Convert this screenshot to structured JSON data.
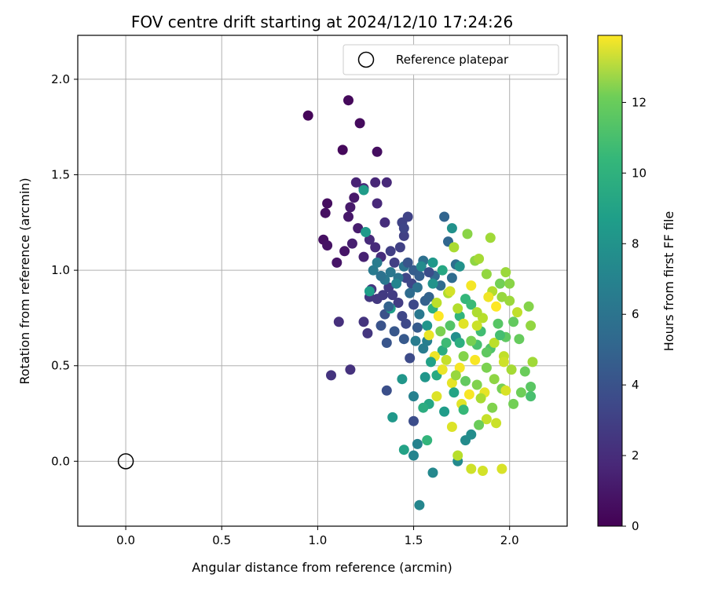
{
  "chart_data": {
    "type": "scatter",
    "title": "FOV centre drift starting at 2024/12/10 17:24:26",
    "xlabel": "Angular distance from reference (arcmin)",
    "ylabel": "Rotation from reference (arcmin)",
    "xlim": [
      -0.25,
      2.3
    ],
    "ylim": [
      -0.34,
      2.23
    ],
    "xticks": [
      "0.0",
      "0.5",
      "1.0",
      "1.5",
      "2.0"
    ],
    "yticks": [
      "0.0",
      "0.5",
      "1.0",
      "1.5",
      "2.0"
    ],
    "grid": true,
    "legend": {
      "placement": "top-right",
      "entries": [
        "Reference platepar"
      ]
    },
    "colorbar": {
      "label": "Hours from first FF file",
      "range": [
        0,
        13.9
      ],
      "ticks": [
        "0",
        "2",
        "4",
        "6",
        "8",
        "10",
        "12"
      ],
      "colormap": "viridis"
    },
    "reference_point": {
      "label": "Reference platepar",
      "x": 0.0,
      "y": 0.0
    },
    "points": [
      {
        "x": 0.95,
        "y": 1.81,
        "h": 0.2
      },
      {
        "x": 1.16,
        "y": 1.89,
        "h": 0.3
      },
      {
        "x": 1.22,
        "y": 1.77,
        "h": 0.4
      },
      {
        "x": 1.13,
        "y": 1.63,
        "h": 0.3
      },
      {
        "x": 1.31,
        "y": 1.62,
        "h": 0.5
      },
      {
        "x": 1.05,
        "y": 1.35,
        "h": 0.5
      },
      {
        "x": 1.04,
        "y": 1.3,
        "h": 0.6
      },
      {
        "x": 1.03,
        "y": 1.16,
        "h": 0.6
      },
      {
        "x": 1.05,
        "y": 1.13,
        "h": 0.7
      },
      {
        "x": 1.1,
        "y": 1.04,
        "h": 0.8
      },
      {
        "x": 1.14,
        "y": 1.1,
        "h": 0.8
      },
      {
        "x": 1.16,
        "y": 1.28,
        "h": 0.9
      },
      {
        "x": 1.17,
        "y": 1.33,
        "h": 1.0
      },
      {
        "x": 1.19,
        "y": 1.38,
        "h": 1.0
      },
      {
        "x": 1.21,
        "y": 1.22,
        "h": 1.1
      },
      {
        "x": 1.18,
        "y": 1.14,
        "h": 1.2
      },
      {
        "x": 1.24,
        "y": 1.07,
        "h": 1.3
      },
      {
        "x": 1.2,
        "y": 1.46,
        "h": 1.4
      },
      {
        "x": 1.24,
        "y": 1.43,
        "h": 1.5
      },
      {
        "x": 1.3,
        "y": 1.46,
        "h": 1.5
      },
      {
        "x": 1.36,
        "y": 1.46,
        "h": 1.6
      },
      {
        "x": 1.31,
        "y": 1.35,
        "h": 1.6
      },
      {
        "x": 1.27,
        "y": 1.16,
        "h": 1.7
      },
      {
        "x": 1.3,
        "y": 1.12,
        "h": 1.7
      },
      {
        "x": 1.35,
        "y": 1.25,
        "h": 1.8
      },
      {
        "x": 1.33,
        "y": 1.07,
        "h": 1.8
      },
      {
        "x": 1.11,
        "y": 0.73,
        "h": 1.9
      },
      {
        "x": 1.17,
        "y": 0.48,
        "h": 2.0
      },
      {
        "x": 1.07,
        "y": 0.45,
        "h": 2.1
      },
      {
        "x": 1.24,
        "y": 0.73,
        "h": 2.1
      },
      {
        "x": 1.26,
        "y": 0.67,
        "h": 2.2
      },
      {
        "x": 1.28,
        "y": 0.9,
        "h": 2.2
      },
      {
        "x": 1.27,
        "y": 0.86,
        "h": 2.3
      },
      {
        "x": 1.31,
        "y": 0.85,
        "h": 2.3
      },
      {
        "x": 1.34,
        "y": 0.87,
        "h": 2.4
      },
      {
        "x": 1.37,
        "y": 0.91,
        "h": 2.4
      },
      {
        "x": 1.39,
        "y": 0.87,
        "h": 2.5
      },
      {
        "x": 1.42,
        "y": 0.83,
        "h": 2.5
      },
      {
        "x": 1.38,
        "y": 1.1,
        "h": 2.6
      },
      {
        "x": 1.4,
        "y": 1.04,
        "h": 2.6
      },
      {
        "x": 1.43,
        "y": 1.12,
        "h": 2.7
      },
      {
        "x": 1.45,
        "y": 1.18,
        "h": 2.7
      },
      {
        "x": 1.44,
        "y": 1.25,
        "h": 2.8
      },
      {
        "x": 1.47,
        "y": 1.28,
        "h": 2.8
      },
      {
        "x": 1.45,
        "y": 1.22,
        "h": 2.9
      },
      {
        "x": 1.46,
        "y": 0.96,
        "h": 2.9
      },
      {
        "x": 1.49,
        "y": 0.93,
        "h": 3.0
      },
      {
        "x": 1.44,
        "y": 0.76,
        "h": 3.0
      },
      {
        "x": 1.46,
        "y": 0.72,
        "h": 3.1
      },
      {
        "x": 1.5,
        "y": 0.82,
        "h": 3.1
      },
      {
        "x": 1.48,
        "y": 0.54,
        "h": 3.2
      },
      {
        "x": 1.5,
        "y": 0.21,
        "h": 3.3
      },
      {
        "x": 1.36,
        "y": 0.37,
        "h": 3.4
      },
      {
        "x": 1.35,
        "y": 0.77,
        "h": 3.5
      },
      {
        "x": 1.33,
        "y": 0.71,
        "h": 3.6
      },
      {
        "x": 1.36,
        "y": 0.62,
        "h": 3.7
      },
      {
        "x": 1.4,
        "y": 0.68,
        "h": 3.8
      },
      {
        "x": 1.45,
        "y": 0.64,
        "h": 3.9
      },
      {
        "x": 1.52,
        "y": 0.7,
        "h": 4.0
      },
      {
        "x": 1.5,
        "y": 1.0,
        "h": 4.1
      },
      {
        "x": 1.53,
        "y": 0.97,
        "h": 4.2
      },
      {
        "x": 1.56,
        "y": 0.84,
        "h": 4.3
      },
      {
        "x": 1.58,
        "y": 0.86,
        "h": 4.4
      },
      {
        "x": 1.66,
        "y": 1.28,
        "h": 4.5
      },
      {
        "x": 1.68,
        "y": 1.15,
        "h": 4.6
      },
      {
        "x": 1.61,
        "y": 0.97,
        "h": 4.7
      },
      {
        "x": 1.64,
        "y": 0.92,
        "h": 4.8
      },
      {
        "x": 1.7,
        "y": 0.96,
        "h": 4.9
      },
      {
        "x": 1.72,
        "y": 1.03,
        "h": 5.0
      },
      {
        "x": 1.55,
        "y": 1.05,
        "h": 5.1
      },
      {
        "x": 1.52,
        "y": 0.91,
        "h": 5.2
      },
      {
        "x": 1.45,
        "y": 1.02,
        "h": 5.3
      },
      {
        "x": 1.42,
        "y": 0.96,
        "h": 5.4
      },
      {
        "x": 1.38,
        "y": 0.99,
        "h": 5.5
      },
      {
        "x": 1.35,
        "y": 0.95,
        "h": 5.6
      },
      {
        "x": 1.29,
        "y": 1.0,
        "h": 5.7
      },
      {
        "x": 1.31,
        "y": 1.04,
        "h": 5.8
      },
      {
        "x": 1.55,
        "y": 0.59,
        "h": 5.9
      },
      {
        "x": 1.57,
        "y": 0.63,
        "h": 6.0
      },
      {
        "x": 1.5,
        "y": 0.34,
        "h": 6.1
      },
      {
        "x": 1.52,
        "y": 0.09,
        "h": 6.2
      },
      {
        "x": 1.5,
        "y": 0.03,
        "h": 6.3
      },
      {
        "x": 1.53,
        "y": -0.23,
        "h": 6.4
      },
      {
        "x": 1.6,
        "y": -0.06,
        "h": 6.5
      },
      {
        "x": 1.73,
        "y": 0.0,
        "h": 6.6
      },
      {
        "x": 1.77,
        "y": 0.11,
        "h": 6.7
      },
      {
        "x": 1.8,
        "y": 0.14,
        "h": 6.8
      },
      {
        "x": 1.72,
        "y": 0.65,
        "h": 6.9
      },
      {
        "x": 1.7,
        "y": 1.22,
        "h": 7.0
      },
      {
        "x": 1.6,
        "y": 0.93,
        "h": 7.1
      },
      {
        "x": 1.57,
        "y": 0.71,
        "h": 7.2
      },
      {
        "x": 1.44,
        "y": 0.43,
        "h": 7.3
      },
      {
        "x": 1.39,
        "y": 0.23,
        "h": 7.4
      },
      {
        "x": 1.25,
        "y": 1.2,
        "h": 7.5
      },
      {
        "x": 1.24,
        "y": 1.42,
        "h": 7.6
      },
      {
        "x": 1.27,
        "y": 0.89,
        "h": 7.7
      },
      {
        "x": 1.38,
        "y": 0.8,
        "h": 7.8
      },
      {
        "x": 1.45,
        "y": 0.06,
        "h": 8.0
      },
      {
        "x": 1.58,
        "y": 0.3,
        "h": 8.2
      },
      {
        "x": 1.62,
        "y": 0.45,
        "h": 8.4
      },
      {
        "x": 1.65,
        "y": 0.58,
        "h": 8.6
      },
      {
        "x": 1.6,
        "y": 0.8,
        "h": 8.8
      },
      {
        "x": 1.74,
        "y": 0.76,
        "h": 9.0
      },
      {
        "x": 1.77,
        "y": 0.85,
        "h": 9.2
      },
      {
        "x": 1.8,
        "y": 0.82,
        "h": 9.4
      },
      {
        "x": 1.85,
        "y": 0.68,
        "h": 9.6
      },
      {
        "x": 1.83,
        "y": 0.61,
        "h": 9.8
      },
      {
        "x": 1.9,
        "y": 0.59,
        "h": 10.0
      },
      {
        "x": 1.94,
        "y": 0.72,
        "h": 10.2
      },
      {
        "x": 1.98,
        "y": 0.65,
        "h": 10.4
      },
      {
        "x": 2.02,
        "y": 0.73,
        "h": 10.5
      },
      {
        "x": 2.05,
        "y": 0.64,
        "h": 10.6
      },
      {
        "x": 2.08,
        "y": 0.47,
        "h": 10.7
      },
      {
        "x": 2.06,
        "y": 0.36,
        "h": 10.8
      },
      {
        "x": 2.02,
        "y": 0.3,
        "h": 10.9
      },
      {
        "x": 1.96,
        "y": 0.38,
        "h": 11.0
      },
      {
        "x": 1.88,
        "y": 0.49,
        "h": 11.1
      },
      {
        "x": 1.83,
        "y": 0.4,
        "h": 11.2
      },
      {
        "x": 1.76,
        "y": 0.55,
        "h": 11.3
      },
      {
        "x": 1.78,
        "y": 1.19,
        "h": 11.4
      },
      {
        "x": 1.82,
        "y": 1.05,
        "h": 11.5
      },
      {
        "x": 1.88,
        "y": 0.98,
        "h": 11.6
      },
      {
        "x": 1.96,
        "y": 0.86,
        "h": 11.7
      },
      {
        "x": 2.0,
        "y": 0.84,
        "h": 11.8
      },
      {
        "x": 1.9,
        "y": 1.17,
        "h": 11.9
      },
      {
        "x": 1.84,
        "y": 1.06,
        "h": 12.0
      },
      {
        "x": 1.71,
        "y": 1.12,
        "h": 12.1
      },
      {
        "x": 1.68,
        "y": 0.88,
        "h": 12.2
      },
      {
        "x": 1.73,
        "y": 0.8,
        "h": 12.3
      },
      {
        "x": 1.86,
        "y": 0.75,
        "h": 12.4
      },
      {
        "x": 1.92,
        "y": 0.62,
        "h": 12.5
      },
      {
        "x": 1.97,
        "y": 0.55,
        "h": 12.6
      },
      {
        "x": 1.88,
        "y": 0.22,
        "h": 12.7
      },
      {
        "x": 1.93,
        "y": 0.2,
        "h": 12.8
      },
      {
        "x": 1.8,
        "y": -0.04,
        "h": 12.9
      },
      {
        "x": 1.86,
        "y": -0.05,
        "h": 13.0
      },
      {
        "x": 1.96,
        "y": -0.04,
        "h": 13.1
      },
      {
        "x": 1.7,
        "y": 0.18,
        "h": 13.2
      },
      {
        "x": 1.75,
        "y": 0.3,
        "h": 13.3
      },
      {
        "x": 1.7,
        "y": 0.41,
        "h": 13.4
      },
      {
        "x": 1.65,
        "y": 0.48,
        "h": 13.5
      },
      {
        "x": 1.61,
        "y": 0.55,
        "h": 13.6
      },
      {
        "x": 1.74,
        "y": 0.49,
        "h": 13.7
      },
      {
        "x": 1.82,
        "y": 0.53,
        "h": 13.8
      },
      {
        "x": 1.93,
        "y": 0.81,
        "h": 13.9
      },
      {
        "x": 1.63,
        "y": 0.76,
        "h": 13.9
      },
      {
        "x": 1.58,
        "y": 0.66,
        "h": 13.5
      },
      {
        "x": 1.8,
        "y": 0.92,
        "h": 13.7
      },
      {
        "x": 1.62,
        "y": 0.34,
        "h": 13.2
      },
      {
        "x": 1.87,
        "y": 0.36,
        "h": 13.4
      },
      {
        "x": 2.04,
        "y": 0.78,
        "h": 12.6
      },
      {
        "x": 2.1,
        "y": 0.81,
        "h": 11.3
      },
      {
        "x": 2.11,
        "y": 0.71,
        "h": 11.6
      },
      {
        "x": 2.12,
        "y": 0.52,
        "h": 11.9
      },
      {
        "x": 2.11,
        "y": 0.39,
        "h": 10.3
      },
      {
        "x": 2.11,
        "y": 0.34,
        "h": 9.8
      },
      {
        "x": 1.98,
        "y": 0.99,
        "h": 11.8
      },
      {
        "x": 1.95,
        "y": 0.93,
        "h": 10.9
      },
      {
        "x": 2.0,
        "y": 0.93,
        "h": 11.4
      },
      {
        "x": 1.91,
        "y": 0.89,
        "h": 12.3
      },
      {
        "x": 1.97,
        "y": 0.52,
        "h": 12.9
      },
      {
        "x": 1.83,
        "y": 0.71,
        "h": 12.8
      },
      {
        "x": 1.8,
        "y": 0.63,
        "h": 11.0
      },
      {
        "x": 1.77,
        "y": 0.42,
        "h": 10.5
      },
      {
        "x": 1.85,
        "y": 0.33,
        "h": 12.1
      },
      {
        "x": 1.92,
        "y": 0.43,
        "h": 11.5
      },
      {
        "x": 1.67,
        "y": 0.62,
        "h": 9.5
      },
      {
        "x": 1.69,
        "y": 0.71,
        "h": 10.1
      },
      {
        "x": 1.74,
        "y": 0.62,
        "h": 8.7
      },
      {
        "x": 1.59,
        "y": 0.52,
        "h": 7.9
      },
      {
        "x": 1.56,
        "y": 0.44,
        "h": 7.3
      },
      {
        "x": 1.55,
        "y": 0.28,
        "h": 8.6
      },
      {
        "x": 1.57,
        "y": 0.11,
        "h": 9.1
      },
      {
        "x": 1.66,
        "y": 0.26,
        "h": 7.6
      },
      {
        "x": 1.71,
        "y": 0.36,
        "h": 8.1
      },
      {
        "x": 1.76,
        "y": 0.27,
        "h": 9.3
      },
      {
        "x": 1.84,
        "y": 0.19,
        "h": 10.7
      },
      {
        "x": 1.91,
        "y": 0.28,
        "h": 11.2
      },
      {
        "x": 1.98,
        "y": 0.37,
        "h": 13.1
      },
      {
        "x": 1.73,
        "y": 0.03,
        "h": 12.4
      },
      {
        "x": 1.89,
        "y": 0.86,
        "h": 13.6
      },
      {
        "x": 1.76,
        "y": 0.72,
        "h": 13.3
      },
      {
        "x": 1.83,
        "y": 0.78,
        "h": 12.2
      },
      {
        "x": 1.64,
        "y": 0.68,
        "h": 11.1
      },
      {
        "x": 1.67,
        "y": 0.53,
        "h": 12.7
      },
      {
        "x": 1.72,
        "y": 0.45,
        "h": 11.7
      },
      {
        "x": 1.79,
        "y": 0.35,
        "h": 13.8
      },
      {
        "x": 1.88,
        "y": 0.57,
        "h": 10.4
      },
      {
        "x": 1.95,
        "y": 0.66,
        "h": 9.7
      },
      {
        "x": 2.01,
        "y": 0.48,
        "h": 12.0
      },
      {
        "x": 1.62,
        "y": 0.83,
        "h": 12.5
      },
      {
        "x": 1.69,
        "y": 0.89,
        "h": 13.0
      },
      {
        "x": 1.53,
        "y": 0.77,
        "h": 5.6
      },
      {
        "x": 1.48,
        "y": 0.88,
        "h": 4.9
      },
      {
        "x": 1.41,
        "y": 0.93,
        "h": 6.3
      },
      {
        "x": 1.33,
        "y": 0.97,
        "h": 5.2
      },
      {
        "x": 1.37,
        "y": 0.81,
        "h": 4.4
      },
      {
        "x": 1.51,
        "y": 0.63,
        "h": 5.8
      },
      {
        "x": 1.47,
        "y": 1.04,
        "h": 3.7
      },
      {
        "x": 1.54,
        "y": 1.02,
        "h": 6.7
      },
      {
        "x": 1.6,
        "y": 1.04,
        "h": 7.4
      },
      {
        "x": 1.65,
        "y": 1.0,
        "h": 8.3
      },
      {
        "x": 1.74,
        "y": 1.02,
        "h": 7.0
      },
      {
        "x": 1.58,
        "y": 0.99,
        "h": 3.3
      }
    ]
  }
}
